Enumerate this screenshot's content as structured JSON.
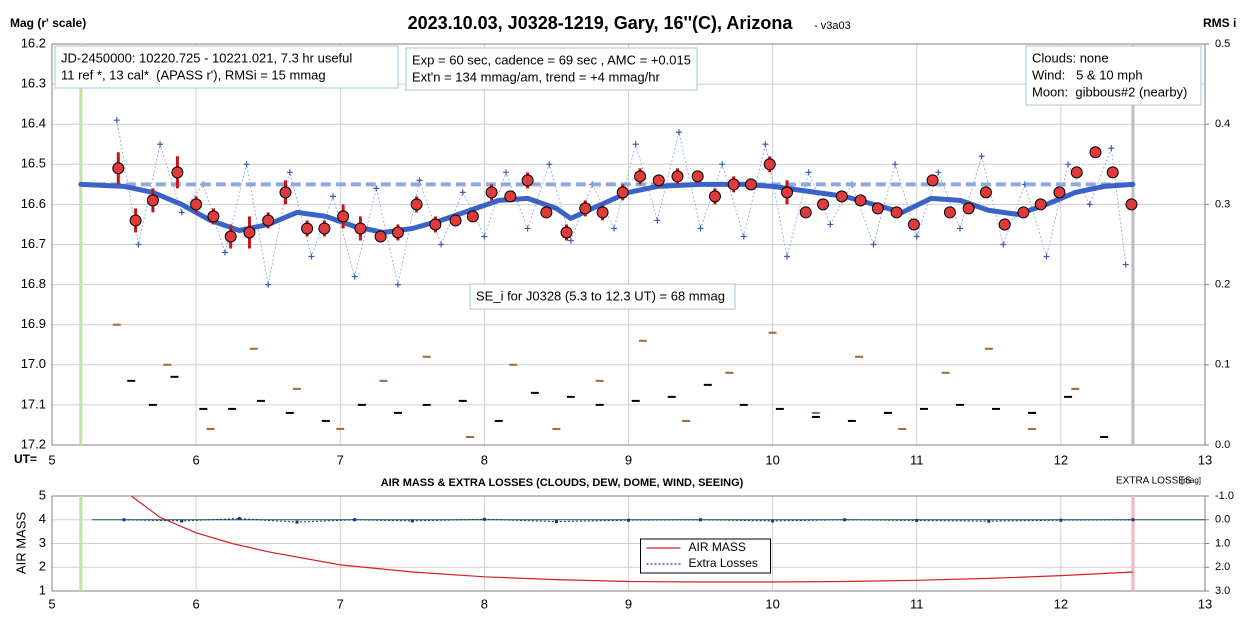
{
  "chart_data": [
    {
      "type": "scatter",
      "title": "2023.10.03, J0328-1219, Gary, 16''(C), Arizona",
      "subtitle": "- v3a03",
      "ylabel": "Mag (r' scale)",
      "y2label": "RMS i",
      "xlabel": "UT=",
      "xlim": [
        5,
        13
      ],
      "xticks": [
        5,
        6,
        7,
        8,
        9,
        10,
        11,
        12,
        13
      ],
      "ylim": [
        17.2,
        16.2
      ],
      "yticks": [
        16.2,
        16.3,
        16.4,
        16.5,
        16.6,
        16.7,
        16.8,
        16.9,
        {
          "value": 17.0,
          "label": "17.0"
        },
        17.1,
        17.2
      ],
      "y2lim": [
        0,
        0.5
      ],
      "y2ticks": [
        {
          "value": 0,
          "label": "0.0"
        },
        0.1,
        0.2,
        0.3,
        0.4,
        0.5
      ],
      "grid": true,
      "vlines": [
        {
          "x": 5.2,
          "color": "#c6e0a4"
        },
        {
          "x": 12.5,
          "color": "#bdbdbd"
        }
      ],
      "annotations": [
        {
          "lines": [
            "JD-2450000: 10220.725 - 10221.021, 7.3 hr useful",
            "11 ref *, 13 cal*  (APASS r'), RMSi = 15 mmag"
          ]
        },
        {
          "lines": [
            "Exp = 60 sec, cadence = 69 sec , AMC = +0.015",
            "Ext'n = 134 mmag/am, trend = +4 mmag/hr"
          ]
        },
        {
          "lines": [
            "Clouds: none",
            "Wind:   5 & 10 mph",
            "Moon:  gibbous#2 (nearby)"
          ]
        },
        {
          "lines": [
            "SE_i for J0328 (5.3 to 12.3 UT) = 68 mmag"
          ]
        }
      ],
      "series": [
        {
          "mark": "dash",
          "axis": "y2",
          "color": "#9c6b3a",
          "x": [
            5.45,
            5.8,
            6.1,
            6.4,
            6.7,
            7.0,
            7.3,
            7.6,
            7.9,
            8.2,
            8.5,
            8.8,
            9.1,
            9.4,
            9.7,
            10.0,
            10.3,
            10.6,
            10.9,
            11.2,
            11.5,
            11.8,
            12.1
          ],
          "values": [
            0.15,
            0.1,
            0.02,
            0.12,
            0.07,
            0.02,
            0.08,
            0.11,
            0.01,
            0.1,
            0.02,
            0.08,
            0.13,
            0.03,
            0.09,
            0.14,
            0.04,
            0.11,
            0.02,
            0.09,
            0.12,
            0.02,
            0.07
          ]
        },
        {
          "mark": "dash",
          "axis": "y2",
          "color": "#000000",
          "x": [
            5.55,
            5.7,
            5.85,
            6.05,
            6.25,
            6.45,
            6.65,
            6.9,
            7.15,
            7.4,
            7.6,
            7.85,
            8.1,
            8.35,
            8.6,
            8.8,
            9.05,
            9.3,
            9.55,
            9.8,
            10.05,
            10.3,
            10.55,
            10.8,
            11.05,
            11.3,
            11.55,
            11.8,
            12.05,
            12.3
          ],
          "values": [
            0.08,
            0.05,
            0.085,
            0.045,
            0.045,
            0.055,
            0.04,
            0.03,
            0.05,
            0.04,
            0.05,
            0.055,
            0.03,
            0.065,
            0.06,
            0.05,
            0.055,
            0.06,
            0.075,
            0.05,
            0.045,
            0.035,
            0.03,
            0.04,
            0.045,
            0.05,
            0.045,
            0.04,
            0.06,
            0.01
          ]
        },
        {
          "mark": "plus",
          "connect": true,
          "color": "#3a5fb0",
          "x": [
            5.45,
            5.6,
            5.75,
            5.9,
            6.05,
            6.2,
            6.35,
            6.5,
            6.65,
            6.8,
            6.95,
            7.1,
            7.25,
            7.4,
            7.55,
            7.7,
            7.85,
            8.0,
            8.15,
            8.3,
            8.45,
            8.6,
            8.75,
            8.9,
            9.05,
            9.2,
            9.35,
            9.5,
            9.65,
            9.8,
            9.95,
            10.1,
            10.25,
            10.4,
            10.55,
            10.7,
            10.85,
            11.0,
            11.15,
            11.3,
            11.45,
            11.6,
            11.75,
            11.9,
            12.05,
            12.2,
            12.35,
            12.45
          ],
          "values": [
            16.39,
            16.7,
            16.45,
            16.62,
            16.55,
            16.72,
            16.5,
            16.8,
            16.52,
            16.73,
            16.58,
            16.78,
            16.56,
            16.8,
            16.54,
            16.7,
            16.57,
            16.68,
            16.52,
            16.66,
            16.5,
            16.69,
            16.55,
            16.66,
            16.45,
            16.64,
            16.42,
            16.66,
            16.5,
            16.68,
            16.45,
            16.73,
            16.52,
            16.65,
            16.55,
            16.7,
            16.5,
            16.68,
            16.52,
            16.66,
            16.48,
            16.7,
            16.55,
            16.73,
            16.5,
            16.6,
            16.46,
            16.75
          ]
        },
        {
          "mark": "line",
          "dashed": true,
          "color": "#8fa9dc",
          "x": [
            5.2,
            12.5
          ],
          "values": [
            16.55,
            16.55
          ]
        },
        {
          "mark": "line",
          "color": "#3a62c8",
          "x": [
            5.2,
            5.5,
            5.7,
            5.9,
            6.1,
            6.3,
            6.5,
            6.7,
            6.9,
            7.1,
            7.3,
            7.5,
            7.7,
            7.9,
            8.1,
            8.3,
            8.5,
            8.6,
            8.75,
            9.0,
            9.2,
            9.5,
            9.8,
            10.0,
            10.2,
            10.5,
            10.7,
            10.9,
            11.1,
            11.3,
            11.5,
            11.7,
            11.9,
            12.1,
            12.3,
            12.5
          ],
          "values": [
            16.55,
            16.555,
            16.57,
            16.6,
            16.64,
            16.665,
            16.65,
            16.62,
            16.63,
            16.655,
            16.67,
            16.66,
            16.64,
            16.615,
            16.59,
            16.585,
            16.61,
            16.635,
            16.61,
            16.57,
            16.555,
            16.55,
            16.55,
            16.555,
            16.565,
            16.58,
            16.6,
            16.62,
            16.585,
            16.59,
            16.615,
            16.625,
            16.6,
            16.57,
            16.555,
            16.55
          ]
        },
        {
          "mark": "circle",
          "color": "#e03a3a",
          "error_color": "#c81414",
          "x": [
            5.46,
            5.58,
            5.7,
            5.87,
            6.0,
            6.12,
            6.24,
            6.37,
            6.5,
            6.62,
            6.77,
            6.89,
            7.02,
            7.14,
            7.28,
            7.4,
            7.53,
            7.66,
            7.8,
            7.92,
            8.05,
            8.18,
            8.3,
            8.43,
            8.57,
            8.7,
            8.82,
            8.96,
            9.08,
            9.21,
            9.34,
            9.48,
            9.6,
            9.73,
            9.85,
            9.98,
            10.1,
            10.23,
            10.35,
            10.48,
            10.61,
            10.73,
            10.86,
            10.98,
            11.11,
            11.23,
            11.36,
            11.48,
            11.61,
            11.74,
            11.86,
            11.99,
            12.11,
            12.24,
            12.36,
            12.49
          ],
          "values": [
            16.51,
            16.64,
            16.59,
            16.52,
            16.6,
            16.63,
            16.68,
            16.67,
            16.64,
            16.57,
            16.66,
            16.66,
            16.63,
            16.66,
            16.68,
            16.67,
            16.6,
            16.65,
            16.64,
            16.63,
            16.57,
            16.58,
            16.54,
            16.62,
            16.67,
            16.61,
            16.62,
            16.57,
            16.53,
            16.54,
            16.53,
            16.53,
            16.58,
            16.55,
            16.55,
            16.5,
            16.57,
            16.62,
            16.6,
            16.58,
            16.59,
            16.61,
            16.62,
            16.65,
            16.54,
            16.62,
            16.61,
            16.57,
            16.65,
            16.62,
            16.6,
            16.57,
            16.52,
            16.47,
            16.52,
            16.6
          ],
          "errors": [
            0.04,
            0.03,
            0.03,
            0.04,
            0.02,
            0.02,
            0.03,
            0.04,
            0.02,
            0.03,
            0.02,
            0.02,
            0.03,
            0.03,
            0.01,
            0.02,
            0.02,
            0.02,
            0.01,
            0.01,
            0.02,
            0.01,
            0.02,
            0.01,
            0.02,
            0.02,
            0.02,
            0.02,
            0.02,
            0.01,
            0.02,
            0.01,
            0.02,
            0.02,
            0.01,
            0.02,
            0.03,
            0.01,
            0.01,
            0.01,
            0.01,
            0.01,
            0.01,
            0.01,
            0.01,
            0.01,
            0.01,
            0.01,
            0.01,
            0.01,
            0.01,
            0.01,
            0.01,
            0.01,
            0.01,
            0.01
          ]
        }
      ]
    },
    {
      "type": "line",
      "title": "AIR MASS & EXTRA LOSSES (CLOUDS, DEW, DOME, WIND, SEEING)",
      "ylabel": "AIR MASS",
      "y2label": "EXTRA LOSSES",
      "y2unit": "[mag]",
      "xlim": [
        5,
        13
      ],
      "xticks": [
        5,
        6,
        7,
        8,
        9,
        10,
        11,
        12,
        13
      ],
      "ylim": [
        1,
        5
      ],
      "yticks": [
        1,
        2,
        3,
        4,
        5
      ],
      "y2lim": [
        3,
        -1
      ],
      "y2ticks": [
        {
          "value": -1,
          "label": "-1.0"
        },
        {
          "value": 0,
          "label": "0.0"
        },
        {
          "value": 1,
          "label": "1.0"
        },
        {
          "value": 2,
          "label": "2.0"
        },
        {
          "value": 3,
          "label": "3.0"
        }
      ],
      "grid": true,
      "legend": "lower center",
      "vlines": [
        {
          "x": 5.2,
          "color": "#c6e0a4"
        },
        {
          "x": 12.5,
          "color": "#f4b6bf"
        }
      ],
      "hline_y2": 0,
      "series": [
        {
          "name": "AIR MASS",
          "color": "#d62020",
          "x": [
            5.55,
            5.75,
            6.0,
            6.25,
            6.5,
            7.0,
            7.5,
            8.0,
            8.5,
            9.0,
            9.5,
            10.0,
            10.5,
            11.0,
            11.5,
            12.0,
            12.5
          ],
          "values": [
            5,
            4.1,
            3.45,
            3.0,
            2.65,
            2.1,
            1.8,
            1.6,
            1.48,
            1.4,
            1.38,
            1.38,
            1.4,
            1.45,
            1.53,
            1.65,
            1.8
          ]
        },
        {
          "name": "Extra Losses",
          "color": "#1a2f9c",
          "axis": "y2",
          "dotted": true,
          "x": [
            5.5,
            5.9,
            6.3,
            6.7,
            7.1,
            7.5,
            8.0,
            8.5,
            9.0,
            9.5,
            10.0,
            10.5,
            11.0,
            11.5,
            12.0,
            12.5
          ],
          "values": [
            0.0,
            0.05,
            -0.05,
            0.1,
            0.0,
            0.05,
            -0.02,
            0.08,
            0.02,
            0.0,
            0.05,
            0.0,
            0.03,
            0.06,
            0.02,
            0.0
          ]
        }
      ]
    }
  ]
}
